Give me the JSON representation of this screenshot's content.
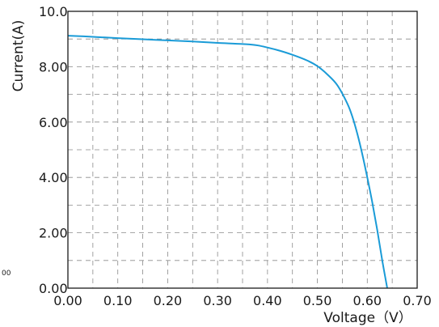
{
  "chart_data": {
    "type": "line",
    "title": "",
    "xlabel": "Voltage（V）",
    "ylabel": "Current(A)",
    "xlim": [
      0,
      0.7
    ],
    "ylim": [
      0,
      10
    ],
    "x_ticks": [
      0,
      0.1,
      0.2,
      0.3,
      0.4,
      0.5,
      0.6,
      0.7
    ],
    "x_tick_labels": [
      "0.00",
      "0.10",
      "0.20",
      "0.30",
      "0.40",
      "0.50",
      "0.60",
      "0.70"
    ],
    "y_ticks": [
      0,
      2,
      4,
      6,
      8,
      10
    ],
    "y_tick_labels": [
      "0.00",
      "2.00",
      "4.00",
      "6.00",
      "8.00",
      "10.0"
    ],
    "grid": true,
    "grid_style": "dashed",
    "line_color": "#1a9bd7",
    "stray_label": "00",
    "series": [
      {
        "x": [
          0,
          0.05,
          0.1,
          0.15,
          0.2,
          0.25,
          0.3,
          0.35,
          0.38,
          0.42,
          0.45,
          0.48,
          0.5,
          0.52,
          0.54,
          0.56,
          0.57,
          0.58,
          0.59,
          0.6,
          0.61,
          0.62,
          0.63,
          0.64
        ],
        "values": [
          9.12,
          9.08,
          9.03,
          8.99,
          8.95,
          8.91,
          8.86,
          8.82,
          8.77,
          8.6,
          8.43,
          8.22,
          8.02,
          7.72,
          7.33,
          6.67,
          6.2,
          5.58,
          4.84,
          4.0,
          3.1,
          2.1,
          1.0,
          0
        ]
      }
    ]
  }
}
